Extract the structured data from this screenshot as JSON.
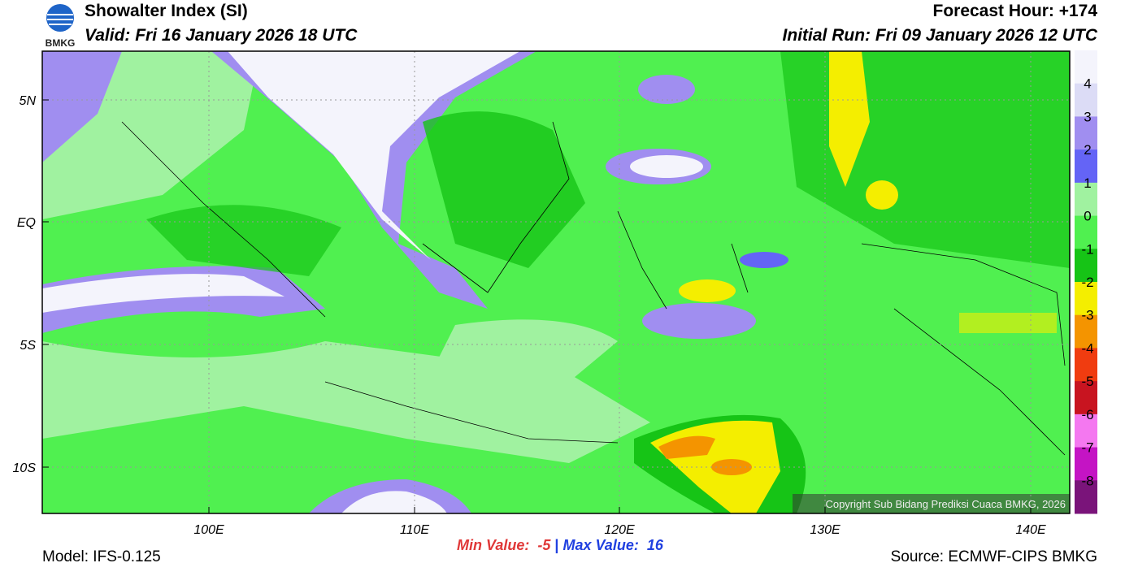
{
  "header": {
    "logo": "BMKG",
    "title": "Showalter Index (SI)",
    "valid": "Valid: Fri 16 January 2026 18 UTC",
    "forecast_hour": "Forecast Hour: +174",
    "initial_run": "Initial Run: Fri 09 January 2026 12 UTC"
  },
  "map": {
    "lat_labels": [
      "5N",
      "EQ",
      "5S",
      "10S"
    ],
    "lon_labels": [
      "100E",
      "110E",
      "120E",
      "130E",
      "140E"
    ],
    "copyright": "Copyright Sub Bidang Prediksi Cuaca BMKG, 2026"
  },
  "colorbar": {
    "labels": [
      4,
      3,
      2,
      1,
      0,
      -1,
      -2,
      -3,
      -4,
      -5,
      -6,
      -7,
      -8
    ],
    "colors": [
      "#f4f4fc",
      "#dcdcf6",
      "#a08ef0",
      "#6464f6",
      "#a0f2a0",
      "#50f050",
      "#16c416",
      "#f4ee00",
      "#f49400",
      "#f03c10",
      "#c81420",
      "#f478f0",
      "#c414c4",
      "#7a147a"
    ]
  },
  "footer": {
    "model": "Model: IFS-0.125",
    "min_label": "Min Value:",
    "min_value": -5,
    "separator": "|",
    "max_label": "Max Value:",
    "max_value": 16,
    "source": "Source: ECMWF-CIPS BMKG"
  }
}
